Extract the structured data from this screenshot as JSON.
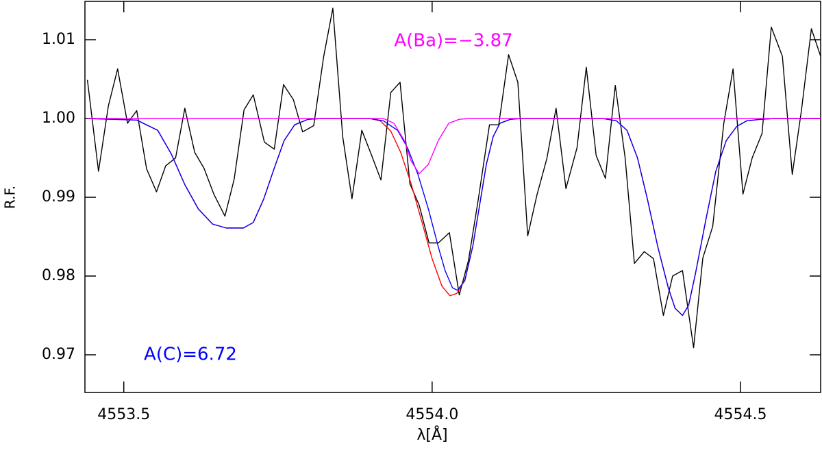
{
  "chart_data": {
    "type": "line",
    "xlabel": "λ[Å]",
    "ylabel": "R.F.",
    "xlim": [
      4553.437,
      4554.63
    ],
    "ylim": [
      0.96522,
      1.01487
    ],
    "xticks": [
      4553.5,
      {
        "value": 4554,
        "label": "4554.0"
      },
      4554.5
    ],
    "yticks": [
      0.97,
      0.98,
      0.99,
      {
        "value": 1,
        "label": "1.00"
      },
      1.01
    ],
    "annotations": [
      {
        "text": "A(Ba)=−3.87",
        "color": "#ff00ff"
      },
      {
        "text": "A(C)=6.72",
        "color": "#0000ff"
      }
    ],
    "series": [
      {
        "color": "#000000",
        "x": [
          4553.441,
          4553.459,
          4553.475,
          4553.49,
          4553.506,
          4553.521,
          4553.537,
          4553.553,
          4553.568,
          4553.584,
          4553.599,
          4553.615,
          4553.63,
          4553.646,
          4553.664,
          4553.679,
          4553.695,
          4553.71,
          4553.728,
          4553.744,
          4553.759,
          4553.775,
          4553.79,
          4553.808,
          4553.824,
          4553.839,
          4553.855,
          4553.87,
          4553.886,
          4553.901,
          4553.917,
          4553.933,
          4553.948,
          4553.964,
          4553.979,
          4553.995,
          4554.01,
          4554.028,
          4554.044,
          4554.059,
          4554.075,
          4554.093,
          4554.108,
          4554.124,
          4554.139,
          4554.155,
          4554.17,
          4554.186,
          4554.201,
          4554.217,
          4554.235,
          4554.25,
          4554.266,
          4554.281,
          4554.297,
          4554.313,
          4554.328,
          4554.344,
          4554.359,
          4554.375,
          4554.39,
          4554.406,
          4554.424,
          4554.439,
          4554.455,
          4554.473,
          4554.488,
          4554.504,
          4554.519,
          4554.535,
          4554.55,
          4554.568,
          4554.584,
          4554.599,
          4554.615,
          4554.63
        ],
        "values": [
          1.0049,
          0.9933,
          1.0016,
          1.0063,
          0.9994,
          1.001,
          0.9936,
          0.9907,
          0.994,
          0.995,
          1.0013,
          0.9957,
          0.9937,
          0.9904,
          0.9876,
          0.9923,
          1.0011,
          1.003,
          0.997,
          0.9961,
          1.0043,
          1.0024,
          0.9983,
          0.9991,
          1.0078,
          1.014,
          0.9977,
          0.9898,
          0.9985,
          0.9955,
          0.9922,
          1.0033,
          1.0046,
          0.9917,
          0.989,
          0.9842,
          0.9842,
          0.9855,
          0.9776,
          0.982,
          0.9898,
          0.9992,
          0.9992,
          1.0081,
          1.0046,
          0.9851,
          0.9903,
          0.9949,
          1.0013,
          0.9911,
          0.9963,
          1.0065,
          0.9953,
          0.9924,
          1.0042,
          0.995,
          0.9816,
          0.9831,
          0.9822,
          0.975,
          0.98,
          0.9807,
          0.9709,
          0.9823,
          0.9863,
          0.9994,
          1.0063,
          0.9904,
          0.995,
          0.9981,
          1.0116,
          1.0079,
          0.9929,
          1.0011,
          1.0114,
          1.0079
        ]
      },
      {
        "color": "#ff0000",
        "x": [
          4553.441,
          4553.521,
          4553.555,
          4553.577,
          4553.599,
          4553.621,
          4553.644,
          4553.666,
          4553.694,
          4553.71,
          4553.727,
          4553.744,
          4553.76,
          4553.777,
          4553.799,
          4553.821,
          4553.899,
          4553.916,
          4553.933,
          4553.949,
          4553.966,
          4553.983,
          4554.0,
          4554.016,
          4554.029,
          4554.04,
          4554.053,
          4554.066,
          4554.077,
          4554.088,
          4554.099,
          4554.11,
          4554.127,
          4554.144,
          4554.277,
          4554.299,
          4554.316,
          4554.333,
          4554.349,
          4554.366,
          4554.383,
          4554.394,
          4554.406,
          4554.416,
          4554.427,
          4554.444,
          4554.46,
          4554.477,
          4554.494,
          4554.51,
          4554.533,
          4554.555,
          4554.63
        ],
        "values": [
          1.0,
          0.9998,
          0.9985,
          0.9955,
          0.9916,
          0.9885,
          0.9866,
          0.9861,
          0.9861,
          0.9868,
          0.9898,
          0.9937,
          0.9972,
          0.9992,
          0.9999,
          1.0,
          1.0,
          0.9997,
          0.9984,
          0.9957,
          0.9917,
          0.987,
          0.9822,
          0.9787,
          0.9775,
          0.9778,
          0.9795,
          0.9838,
          0.989,
          0.9942,
          0.9977,
          0.9994,
          0.9999,
          1.0,
          1.0,
          0.9997,
          0.9985,
          0.995,
          0.9898,
          0.9837,
          0.9785,
          0.9759,
          0.975,
          0.9763,
          0.9803,
          0.9872,
          0.9933,
          0.9972,
          0.999,
          0.9997,
          0.9999,
          1.0,
          1.0
        ]
      },
      {
        "color": "#0000ff",
        "x": [
          4553.441,
          4553.521,
          4553.555,
          4553.577,
          4553.599,
          4553.621,
          4553.644,
          4553.666,
          4553.694,
          4553.71,
          4553.727,
          4553.744,
          4553.76,
          4553.777,
          4553.799,
          4553.821,
          4553.899,
          4553.921,
          4553.944,
          4553.96,
          4553.977,
          4553.994,
          4554.01,
          4554.021,
          4554.033,
          4554.041,
          4554.053,
          4554.066,
          4554.077,
          4554.088,
          4554.099,
          4554.11,
          4554.127,
          4554.144,
          4554.277,
          4554.299,
          4554.316,
          4554.333,
          4554.349,
          4554.366,
          4554.383,
          4554.394,
          4554.406,
          4554.416,
          4554.427,
          4554.444,
          4554.46,
          4554.477,
          4554.494,
          4554.51,
          4554.533,
          4554.555,
          4554.63
        ],
        "values": [
          1.0,
          0.9998,
          0.9985,
          0.9955,
          0.9916,
          0.9885,
          0.9866,
          0.9861,
          0.9861,
          0.9868,
          0.9898,
          0.9937,
          0.9972,
          0.9992,
          0.9999,
          1.0,
          1.0,
          0.9997,
          0.9985,
          0.9963,
          0.9929,
          0.9885,
          0.9837,
          0.9807,
          0.9785,
          0.9782,
          0.9794,
          0.9838,
          0.989,
          0.9942,
          0.9977,
          0.9994,
          0.9999,
          1.0,
          1.0,
          0.9997,
          0.9985,
          0.995,
          0.9898,
          0.9837,
          0.9785,
          0.9759,
          0.975,
          0.9763,
          0.9803,
          0.9872,
          0.9933,
          0.9972,
          0.999,
          0.9997,
          0.9999,
          1.0,
          1.0
        ]
      },
      {
        "color": "#ff00ff",
        "x": [
          4553.441,
          4553.921,
          4553.938,
          4553.955,
          4553.966,
          4553.979,
          4553.994,
          4554.01,
          4554.027,
          4554.044,
          4554.06,
          4554.63
        ],
        "values": [
          1.0,
          1.0,
          0.9994,
          0.9972,
          0.9946,
          0.993,
          0.9942,
          0.9972,
          0.9994,
          0.9999,
          1.0,
          1.0
        ]
      }
    ]
  }
}
